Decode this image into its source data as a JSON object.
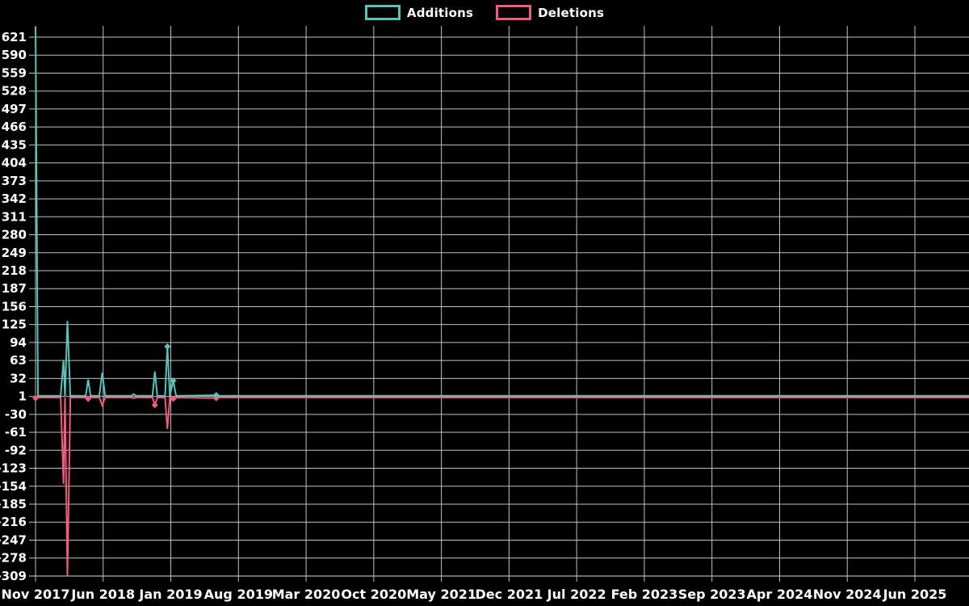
{
  "chart_data": {
    "type": "line",
    "title": "",
    "background_color": "#000000",
    "grid": true,
    "grid_color": "#c2c2c2",
    "text_color": "#ffffff",
    "legend": {
      "position": "top-center",
      "items": [
        "Additions",
        "Deletions"
      ]
    },
    "x_axis": {
      "label": "",
      "tick_labels": [
        "Nov 2017",
        "Jun 2018",
        "Jan 2019",
        "Aug 2019",
        "Mar 2020",
        "Oct 2020",
        "May 2021",
        "Dec 2021",
        "Jul 2022",
        "Feb 2023",
        "Sep 2023",
        "Apr 2024",
        "Nov 2024",
        "Jun 2025"
      ],
      "months_between_ticks": 7
    },
    "y_axis": {
      "label": "",
      "step": 31,
      "max": 621,
      "min": -309,
      "ticks": [
        621,
        590,
        559,
        528,
        497,
        466,
        435,
        404,
        373,
        342,
        311,
        280,
        249,
        218,
        187,
        156,
        125,
        94,
        63,
        32,
        1,
        -30,
        -61,
        -92,
        -123,
        -154,
        -185,
        -216,
        -247,
        -278,
        -309
      ]
    },
    "series": [
      {
        "name": "Additions",
        "color": "#56c3bc"
      },
      {
        "name": "Deletions",
        "color": "#f25c77"
      }
    ],
    "points": [
      {
        "m": 0.0,
        "date": "Nov 2017",
        "additions": 639,
        "deletions": -2,
        "del_marker": true
      },
      {
        "m": 0.25,
        "additions": 2,
        "deletions": -1
      },
      {
        "m": 2.6,
        "additions": 2,
        "deletions": -1
      },
      {
        "m": 2.9,
        "date": "Feb 2018",
        "additions": 64,
        "deletions": -150
      },
      {
        "m": 3.05,
        "additions": 2,
        "deletions": -1
      },
      {
        "m": 3.3,
        "date": "Mar 2018",
        "additions": 131,
        "deletions": -309
      },
      {
        "m": 3.6,
        "additions": 2,
        "deletions": -1
      },
      {
        "m": 5.2,
        "additions": 2,
        "deletions": -1
      },
      {
        "m": 5.45,
        "date": "Apr 2018",
        "additions": 30,
        "deletions": -3,
        "del_marker": true
      },
      {
        "m": 5.7,
        "additions": 2,
        "deletions": -1
      },
      {
        "m": 6.6,
        "additions": 2,
        "deletions": -1
      },
      {
        "m": 6.9,
        "date": "Jun 2018",
        "additions": 42,
        "deletions": -14
      },
      {
        "m": 7.2,
        "additions": 2,
        "deletions": -1
      },
      {
        "m": 9.9,
        "additions": 2,
        "deletions": -1
      },
      {
        "m": 10.15,
        "date": "Sep 2018",
        "additions": 5,
        "deletions": -2
      },
      {
        "m": 10.4,
        "additions": 2,
        "deletions": -1
      },
      {
        "m": 12.1,
        "additions": 2,
        "deletions": -1
      },
      {
        "m": 12.35,
        "date": "Nov 2018",
        "additions": 44,
        "deletions": -14,
        "del_marker": true
      },
      {
        "m": 12.6,
        "additions": 2,
        "deletions": -1
      },
      {
        "m": 13.4,
        "additions": 2,
        "deletions": -1
      },
      {
        "m": 13.65,
        "date": "Jan 2019",
        "additions": 87,
        "deletions": -55,
        "add_marker": true
      },
      {
        "m": 13.9,
        "additions": 2,
        "deletions": -1
      },
      {
        "m": 14.25,
        "date": "Feb 2019",
        "additions": 28,
        "deletions": -3,
        "add_marker": true,
        "del_marker": true
      },
      {
        "m": 14.55,
        "additions": 2,
        "deletions": -1
      },
      {
        "m": 18.7,
        "date": "Jun 2019",
        "additions": 3,
        "deletions": -2,
        "add_marker": true,
        "del_marker": true
      },
      {
        "m": 19.0,
        "additions": 2,
        "deletions": -1
      },
      {
        "m": 96.6,
        "additions": 2,
        "deletions": -1
      }
    ]
  }
}
